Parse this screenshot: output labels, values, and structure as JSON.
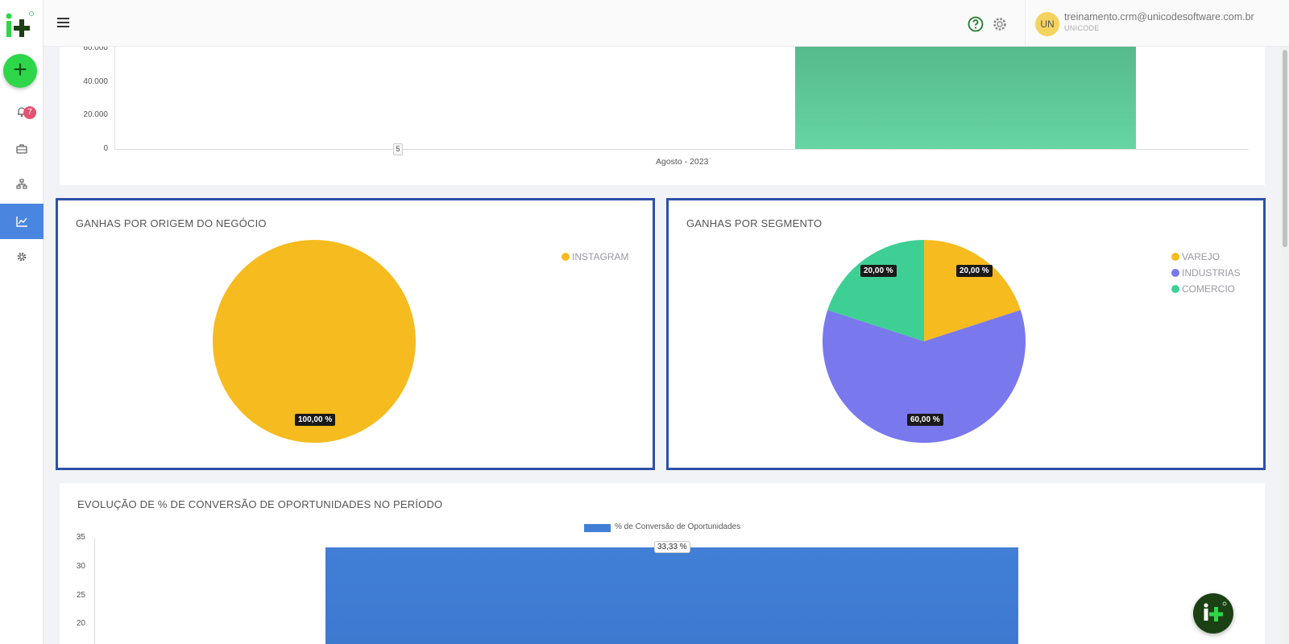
{
  "sidebar": {
    "logo_icon": "iplus-logo-icon",
    "add_icon": "plus-icon",
    "add_label": "+",
    "notifications_count": "7",
    "items": [
      {
        "icon": "bell-icon"
      },
      {
        "icon": "briefcase-icon"
      },
      {
        "icon": "org-chart-icon"
      },
      {
        "icon": "chart-line-icon",
        "active": true
      },
      {
        "icon": "gear-icon"
      }
    ]
  },
  "topbar": {
    "menu_icon": "hamburger-icon",
    "help_icon": "help-circle-icon",
    "settings_icon": "gear-icon",
    "user": {
      "initials": "UN",
      "email": "treinamento.crm@unicodesoftware.com.br",
      "org": "UNICODE"
    }
  },
  "top_chart": {
    "y_ticks": [
      "60.000",
      "40.000",
      "20.000",
      "0"
    ],
    "category": "Agosto - 2023",
    "mini_label": "5",
    "chart_data": {
      "type": "bar",
      "categories": [
        "Agosto - 2023"
      ],
      "series": [
        {
          "values": [
            60000
          ]
        }
      ],
      "ylim": [
        0,
        60000
      ]
    }
  },
  "origin_card": {
    "title": "GANHAS POR ORIGEM DO NEGÓCIO",
    "legend": [
      {
        "label": "INSTAGRAM",
        "color": "#f6bb1e"
      }
    ],
    "slices": [
      {
        "label": "100,00 %",
        "value": 100,
        "color": "#f6bb1e"
      }
    ],
    "chart_data": {
      "type": "pie",
      "categories": [
        "INSTAGRAM"
      ],
      "values": [
        100
      ]
    }
  },
  "segment_card": {
    "title": "GANHAS POR SEGMENTO",
    "legend": [
      {
        "label": "VAREJO",
        "color": "#f6bb1e"
      },
      {
        "label": "INDUSTRIAS",
        "color": "#7a78ed"
      },
      {
        "label": "COMERCIO",
        "color": "#3ecf95"
      }
    ],
    "slice_labels": [
      "20,00 %",
      "60,00 %",
      "20,00 %"
    ],
    "chart_data": {
      "type": "pie",
      "categories": [
        "VAREJO",
        "INDUSTRIAS",
        "COMERCIO"
      ],
      "values": [
        20,
        60,
        20
      ]
    }
  },
  "conversion_card": {
    "title": "EVOLUÇÃO DE % DE CONVERSÃO DE OPORTUNIDADES NO PERÍODO",
    "legend_label": "% de Conversão de Oportunidades",
    "y_ticks": [
      "35",
      "30",
      "25",
      "20"
    ],
    "bar_label": "33,33 %",
    "chart_data": {
      "type": "bar",
      "series": [
        {
          "name": "% de Conversão de Oportunidades",
          "values": [
            33.33
          ]
        }
      ],
      "ylim": [
        0,
        35
      ]
    }
  },
  "floating_button": {
    "icon": "iplus-logo-icon"
  },
  "colors": {
    "accent": "#4a86e0",
    "fab": "#2ed64a",
    "card_border": "#2e50a8"
  }
}
